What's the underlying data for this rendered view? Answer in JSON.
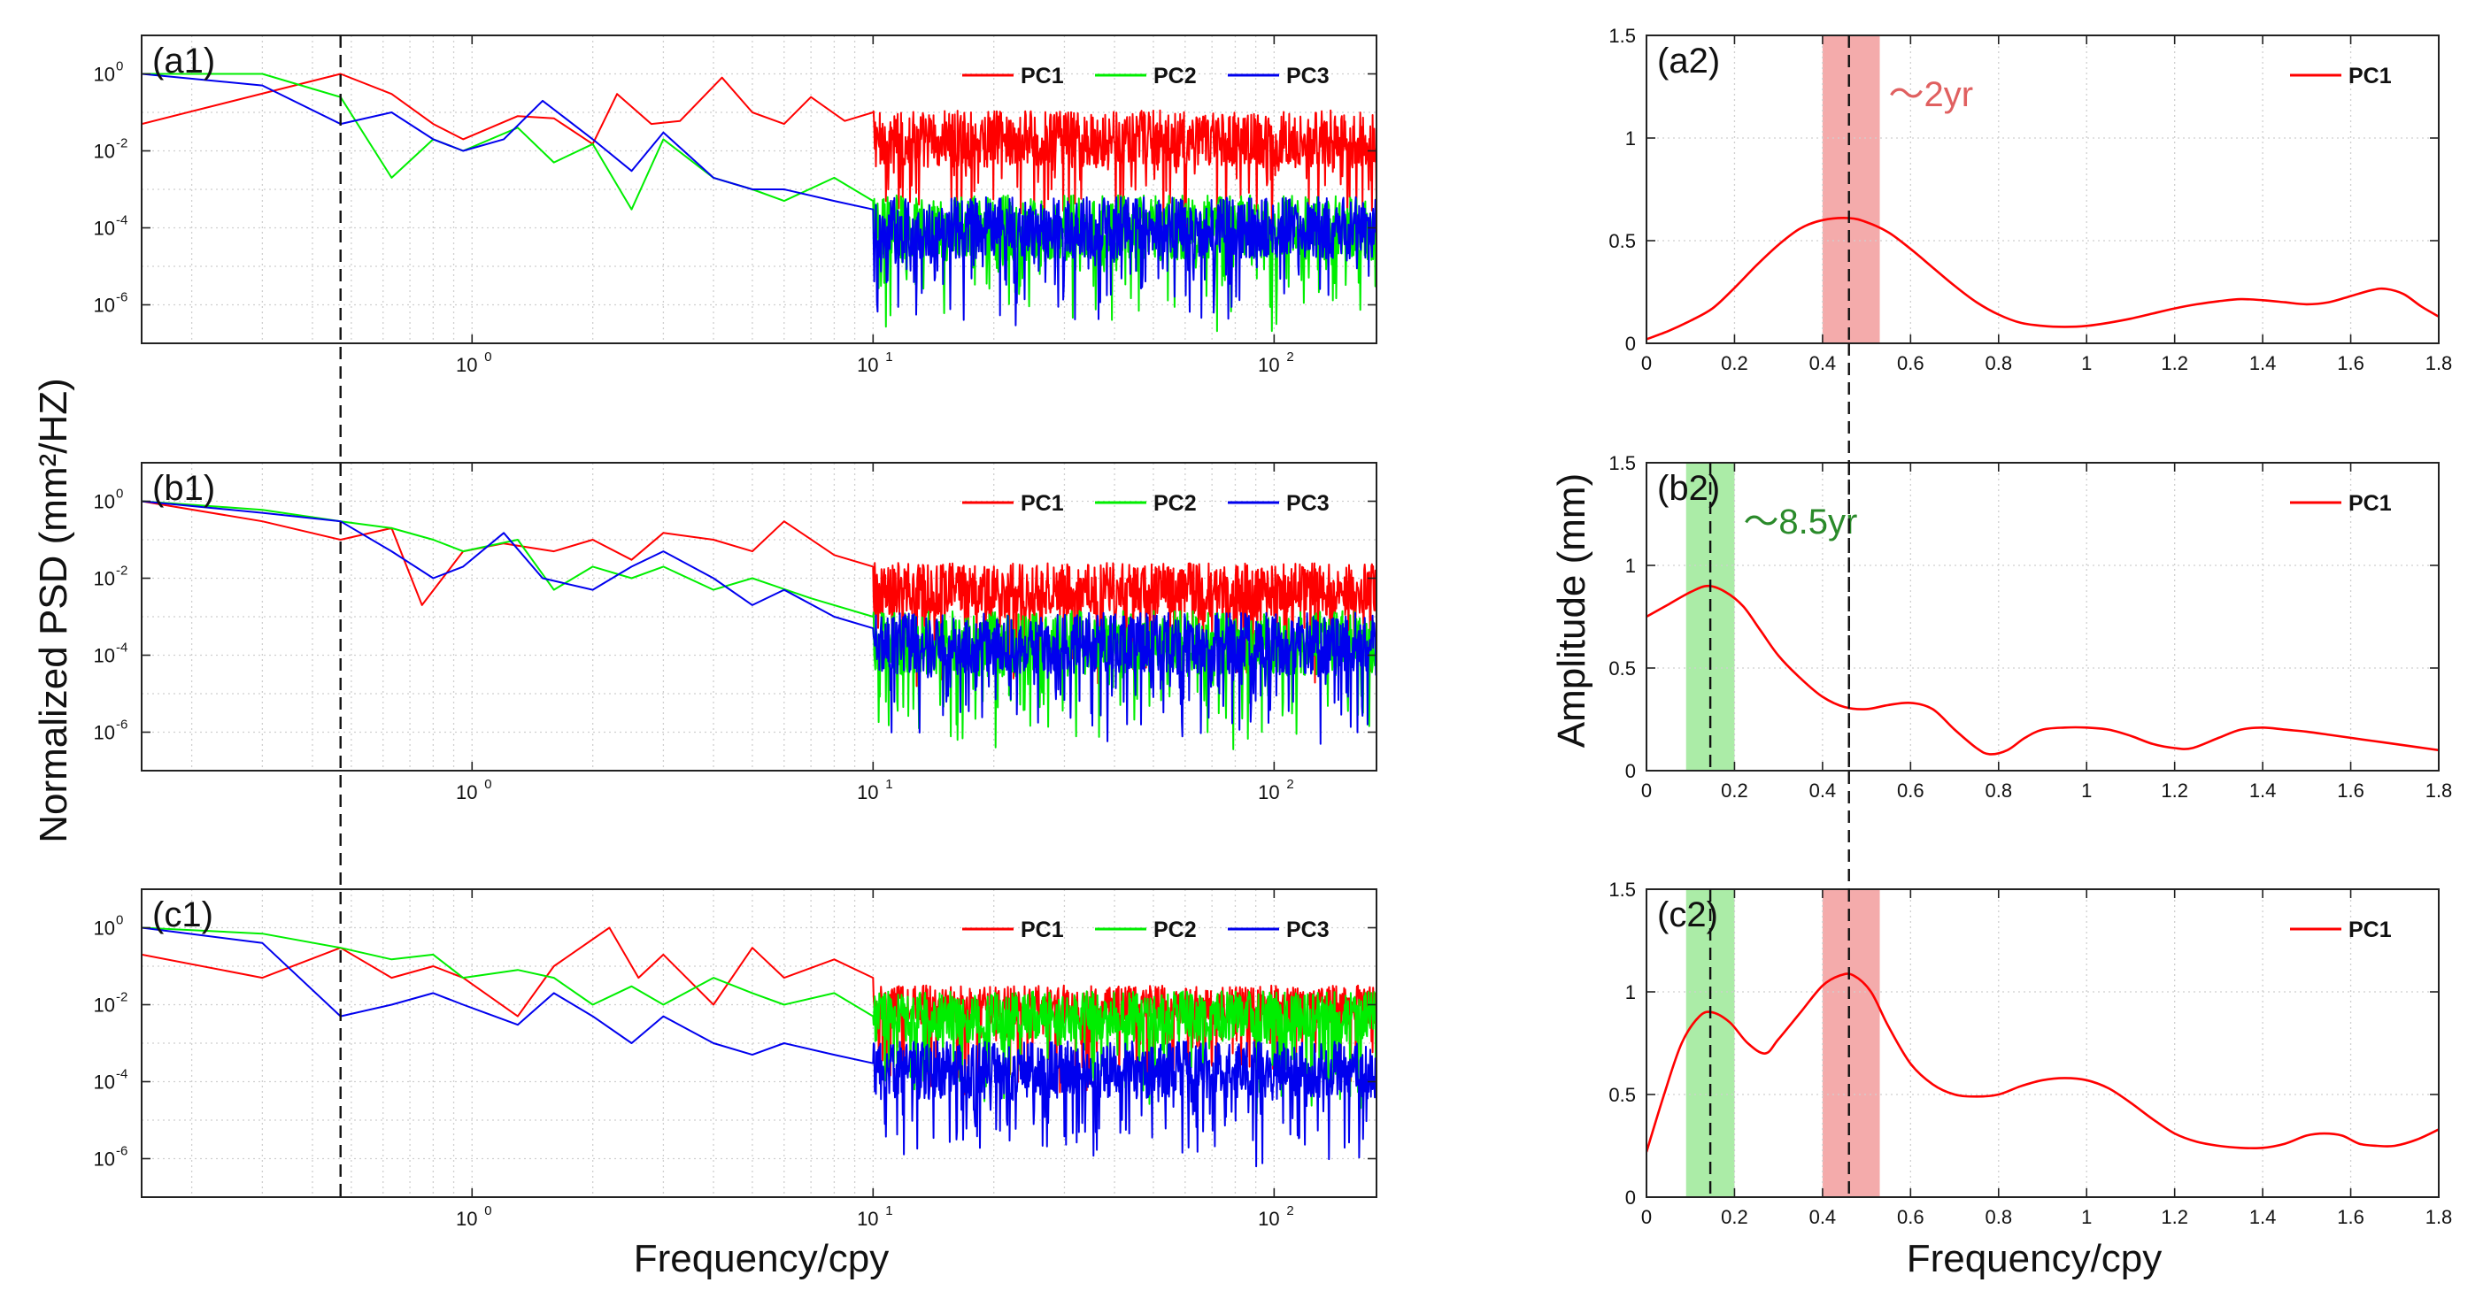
{
  "figure": {
    "left_ylabel": "Normalized PSD (mm²/HZ)",
    "right_ylabel": "Amplitude (mm)",
    "left_xlabel": "Frequency/cpy",
    "right_xlabel": "Frequency/cpy"
  },
  "colors": {
    "PC1": "#ff0000",
    "PC2": "#00ee00",
    "PC3": "#0000ee",
    "pink_band": "#f08f8f",
    "green_band": "#8fe68a",
    "green_text": "#2a8a2a",
    "pink_text": "#e06060"
  },
  "chart_data": [
    {
      "id": "a1",
      "type": "line",
      "scale": "loglog",
      "label": "(a1)",
      "xlim": [
        0.15,
        180
      ],
      "ylim": [
        1e-07,
        10
      ],
      "xticks": [
        1,
        10,
        100
      ],
      "xtick_labels": [
        "10",
        "10",
        "10"
      ],
      "xtick_exps": [
        "0",
        "1",
        "2"
      ],
      "yticks": [
        1e-06,
        0.0001,
        0.01,
        1
      ],
      "ytick_labels": [
        "10",
        "10",
        "10",
        "10"
      ],
      "ytick_exps": [
        "-6",
        "-4",
        "-2",
        "0"
      ],
      "grid": true,
      "vline_x": 0.47,
      "legend": [
        "PC1",
        "PC2",
        "PC3"
      ],
      "series": [
        {
          "name": "PC1",
          "x": [
            0.15,
            0.47,
            0.63,
            0.8,
            0.95,
            1.3,
            1.6,
            2.0,
            2.3,
            2.8,
            3.3,
            4.2,
            5.0,
            6.0,
            7.0,
            8.5,
            10
          ],
          "values": [
            0.05,
            1.0,
            0.3,
            0.05,
            0.02,
            0.08,
            0.07,
            0.015,
            0.3,
            0.05,
            0.06,
            0.8,
            0.1,
            0.05,
            0.25,
            0.06,
            0.1
          ],
          "noise_center": 0.02,
          "noise_decades": 1.5
        },
        {
          "name": "PC2",
          "x": [
            0.15,
            0.3,
            0.47,
            0.63,
            0.8,
            0.95,
            1.3,
            1.6,
            2.0,
            2.5,
            3.0,
            4.0,
            5.0,
            6.0,
            8.0,
            10
          ],
          "values": [
            1.0,
            1.0,
            0.25,
            0.002,
            0.02,
            0.01,
            0.04,
            0.005,
            0.015,
            0.0003,
            0.02,
            0.002,
            0.001,
            0.0005,
            0.002,
            0.0005
          ],
          "noise_center": 0.0001,
          "noise_decades": 1.7
        },
        {
          "name": "PC3",
          "x": [
            0.15,
            0.3,
            0.47,
            0.63,
            0.8,
            0.95,
            1.2,
            1.5,
            2.0,
            2.5,
            3.0,
            4.0,
            5.0,
            6.0,
            8.0,
            10
          ],
          "values": [
            1.0,
            0.5,
            0.05,
            0.1,
            0.02,
            0.01,
            0.02,
            0.2,
            0.02,
            0.003,
            0.03,
            0.002,
            0.001,
            0.001,
            0.0005,
            0.0003
          ],
          "noise_center": 0.0001,
          "noise_decades": 1.6
        }
      ]
    },
    {
      "id": "b1",
      "type": "line",
      "scale": "loglog",
      "label": "(b1)",
      "xlim": [
        0.15,
        180
      ],
      "ylim": [
        1e-07,
        10
      ],
      "xticks": [
        1,
        10,
        100
      ],
      "xtick_labels": [
        "10",
        "10",
        "10"
      ],
      "xtick_exps": [
        "0",
        "1",
        "2"
      ],
      "yticks": [
        1e-06,
        0.0001,
        0.01,
        1
      ],
      "ytick_labels": [
        "10",
        "10",
        "10",
        "10"
      ],
      "ytick_exps": [
        "-6",
        "-4",
        "-2",
        "0"
      ],
      "grid": true,
      "vline_x": 0.47,
      "legend": [
        "PC1",
        "PC2",
        "PC3"
      ],
      "series": [
        {
          "name": "PC1",
          "x": [
            0.15,
            0.3,
            0.47,
            0.63,
            0.75,
            0.95,
            1.2,
            1.6,
            2.0,
            2.5,
            3.0,
            4.0,
            5.0,
            6.0,
            8.0,
            10
          ],
          "values": [
            1.0,
            0.3,
            0.1,
            0.2,
            0.002,
            0.05,
            0.08,
            0.05,
            0.1,
            0.03,
            0.15,
            0.1,
            0.05,
            0.3,
            0.04,
            0.02
          ],
          "noise_center": 0.005,
          "noise_decades": 1.4
        },
        {
          "name": "PC2",
          "x": [
            0.15,
            0.3,
            0.47,
            0.63,
            0.8,
            0.95,
            1.3,
            1.6,
            2.0,
            2.5,
            3.0,
            4.0,
            5.0,
            7.0,
            10
          ],
          "values": [
            1.0,
            0.6,
            0.3,
            0.2,
            0.1,
            0.05,
            0.1,
            0.005,
            0.02,
            0.01,
            0.02,
            0.005,
            0.01,
            0.003,
            0.001
          ],
          "noise_center": 0.0002,
          "noise_decades": 1.7
        },
        {
          "name": "PC3",
          "x": [
            0.15,
            0.3,
            0.47,
            0.63,
            0.8,
            0.95,
            1.2,
            1.5,
            2.0,
            2.5,
            3.0,
            4.0,
            5.0,
            6.0,
            8.0,
            10
          ],
          "values": [
            1.0,
            0.5,
            0.3,
            0.05,
            0.01,
            0.02,
            0.15,
            0.01,
            0.005,
            0.02,
            0.05,
            0.01,
            0.002,
            0.005,
            0.001,
            0.0005
          ],
          "noise_center": 0.0002,
          "noise_decades": 1.6
        }
      ]
    },
    {
      "id": "c1",
      "type": "line",
      "scale": "loglog",
      "label": "(c1)",
      "xlim": [
        0.15,
        180
      ],
      "ylim": [
        1e-07,
        10
      ],
      "xticks": [
        1,
        10,
        100
      ],
      "xtick_labels": [
        "10",
        "10",
        "10"
      ],
      "xtick_exps": [
        "0",
        "1",
        "2"
      ],
      "yticks": [
        1e-06,
        0.0001,
        0.01,
        1
      ],
      "ytick_labels": [
        "10",
        "10",
        "10",
        "10"
      ],
      "ytick_exps": [
        "-6",
        "-4",
        "-2",
        "0"
      ],
      "grid": true,
      "vline_x": 0.47,
      "legend": [
        "PC1",
        "PC2",
        "PC3"
      ],
      "series": [
        {
          "name": "PC1",
          "x": [
            0.15,
            0.3,
            0.47,
            0.63,
            0.8,
            0.95,
            1.3,
            1.6,
            2.2,
            2.6,
            3.0,
            4.0,
            5.0,
            6.0,
            8.0,
            10
          ],
          "values": [
            0.2,
            0.05,
            0.3,
            0.05,
            0.1,
            0.05,
            0.005,
            0.1,
            1.0,
            0.05,
            0.2,
            0.01,
            0.3,
            0.05,
            0.15,
            0.05
          ],
          "noise_center": 0.01,
          "noise_decades": 1.0
        },
        {
          "name": "PC2",
          "x": [
            0.15,
            0.3,
            0.47,
            0.63,
            0.8,
            0.95,
            1.3,
            1.6,
            2.0,
            2.5,
            3.0,
            4.0,
            5.0,
            6.0,
            8.0,
            10
          ],
          "values": [
            1.0,
            0.7,
            0.3,
            0.15,
            0.2,
            0.05,
            0.08,
            0.05,
            0.01,
            0.03,
            0.01,
            0.05,
            0.02,
            0.01,
            0.02,
            0.005
          ],
          "noise_center": 0.005,
          "noise_decades": 1.3
        },
        {
          "name": "PC3",
          "x": [
            0.15,
            0.3,
            0.47,
            0.63,
            0.8,
            0.95,
            1.3,
            1.6,
            2.0,
            2.5,
            3.0,
            4.0,
            5.0,
            6.0,
            8.0,
            10
          ],
          "values": [
            1.0,
            0.4,
            0.005,
            0.01,
            0.02,
            0.01,
            0.003,
            0.02,
            0.005,
            0.001,
            0.005,
            0.001,
            0.0005,
            0.001,
            0.0005,
            0.0003
          ],
          "noise_center": 0.0002,
          "noise_decades": 1.5
        }
      ]
    },
    {
      "id": "a2",
      "type": "line",
      "scale": "linear",
      "label": "(a2)",
      "xlim": [
        0,
        1.8
      ],
      "ylim": [
        0,
        1.5
      ],
      "xticks": [
        0,
        0.2,
        0.4,
        0.6,
        0.8,
        1,
        1.2,
        1.4,
        1.6,
        1.8
      ],
      "xtick_labels": [
        "0",
        "0.2",
        "0.4",
        "0.6",
        "0.8",
        "1",
        "1.2",
        "1.4",
        "1.6",
        "1.8"
      ],
      "yticks": [
        0,
        0.5,
        1,
        1.5
      ],
      "ytick_labels": [
        "0",
        "0.5",
        "1",
        "1.5"
      ],
      "grid": true,
      "legend": [
        "PC1"
      ],
      "bands": [
        {
          "x0": 0.4,
          "x1": 0.53,
          "color_key": "pink_band",
          "label": "～2yr",
          "label_color_key": "pink_text"
        }
      ],
      "vlines": [
        0.46
      ],
      "series": [
        {
          "name": "PC1",
          "x": [
            0,
            0.05,
            0.1,
            0.15,
            0.2,
            0.25,
            0.3,
            0.35,
            0.4,
            0.46,
            0.5,
            0.55,
            0.6,
            0.65,
            0.7,
            0.75,
            0.8,
            0.85,
            0.9,
            0.95,
            1.0,
            1.05,
            1.1,
            1.15,
            1.2,
            1.25,
            1.3,
            1.35,
            1.4,
            1.45,
            1.5,
            1.55,
            1.6,
            1.65,
            1.68,
            1.72,
            1.76,
            1.8
          ],
          "values": [
            0.02,
            0.06,
            0.11,
            0.17,
            0.27,
            0.38,
            0.48,
            0.56,
            0.6,
            0.61,
            0.59,
            0.54,
            0.46,
            0.37,
            0.28,
            0.2,
            0.14,
            0.1,
            0.085,
            0.08,
            0.085,
            0.1,
            0.12,
            0.145,
            0.17,
            0.19,
            0.205,
            0.215,
            0.21,
            0.2,
            0.19,
            0.2,
            0.23,
            0.26,
            0.265,
            0.24,
            0.18,
            0.13
          ]
        }
      ]
    },
    {
      "id": "b2",
      "type": "line",
      "scale": "linear",
      "label": "(b2)",
      "xlim": [
        0,
        1.8
      ],
      "ylim": [
        0,
        1.5
      ],
      "xticks": [
        0,
        0.2,
        0.4,
        0.6,
        0.8,
        1,
        1.2,
        1.4,
        1.6,
        1.8
      ],
      "xtick_labels": [
        "0",
        "0.2",
        "0.4",
        "0.6",
        "0.8",
        "1",
        "1.2",
        "1.4",
        "1.6",
        "1.8"
      ],
      "yticks": [
        0,
        0.5,
        1,
        1.5
      ],
      "ytick_labels": [
        "0",
        "0.5",
        "1",
        "1.5"
      ],
      "grid": true,
      "legend": [
        "PC1"
      ],
      "bands": [
        {
          "x0": 0.09,
          "x1": 0.2,
          "color_key": "green_band",
          "label": "～8.5yr",
          "label_color_key": "green_text"
        }
      ],
      "vlines": [
        0.145,
        0.46
      ],
      "series": [
        {
          "name": "PC1",
          "x": [
            0,
            0.05,
            0.1,
            0.14,
            0.18,
            0.22,
            0.26,
            0.3,
            0.35,
            0.4,
            0.45,
            0.5,
            0.55,
            0.6,
            0.65,
            0.7,
            0.75,
            0.78,
            0.82,
            0.86,
            0.9,
            0.95,
            1.0,
            1.05,
            1.1,
            1.15,
            1.2,
            1.24,
            1.3,
            1.35,
            1.4,
            1.45,
            1.5,
            1.55,
            1.6,
            1.65,
            1.7,
            1.75,
            1.8
          ],
          "values": [
            0.75,
            0.81,
            0.87,
            0.9,
            0.87,
            0.8,
            0.68,
            0.56,
            0.45,
            0.36,
            0.31,
            0.3,
            0.32,
            0.33,
            0.3,
            0.2,
            0.11,
            0.08,
            0.1,
            0.16,
            0.2,
            0.21,
            0.21,
            0.2,
            0.17,
            0.13,
            0.11,
            0.11,
            0.16,
            0.2,
            0.21,
            0.2,
            0.19,
            0.175,
            0.16,
            0.145,
            0.13,
            0.115,
            0.1
          ]
        }
      ]
    },
    {
      "id": "c2",
      "type": "line",
      "scale": "linear",
      "label": "(c2)",
      "xlim": [
        0,
        1.8
      ],
      "ylim": [
        0,
        1.5
      ],
      "xticks": [
        0,
        0.2,
        0.4,
        0.6,
        0.8,
        1,
        1.2,
        1.4,
        1.6,
        1.8
      ],
      "xtick_labels": [
        "0",
        "0.2",
        "0.4",
        "0.6",
        "0.8",
        "1",
        "1.2",
        "1.4",
        "1.6",
        "1.8"
      ],
      "yticks": [
        0,
        0.5,
        1,
        1.5
      ],
      "ytick_labels": [
        "0",
        "0.5",
        "1",
        "1.5"
      ],
      "grid": true,
      "legend": [
        "PC1"
      ],
      "bands": [
        {
          "x0": 0.09,
          "x1": 0.2,
          "color_key": "green_band",
          "label": "",
          "label_color_key": "green_text"
        },
        {
          "x0": 0.4,
          "x1": 0.53,
          "color_key": "pink_band",
          "label": "",
          "label_color_key": "pink_text"
        }
      ],
      "vlines": [
        0.145,
        0.46
      ],
      "series": [
        {
          "name": "PC1",
          "x": [
            0,
            0.04,
            0.08,
            0.12,
            0.15,
            0.19,
            0.23,
            0.27,
            0.3,
            0.35,
            0.4,
            0.44,
            0.47,
            0.51,
            0.55,
            0.6,
            0.65,
            0.7,
            0.75,
            0.8,
            0.85,
            0.9,
            0.95,
            1.0,
            1.05,
            1.1,
            1.15,
            1.2,
            1.25,
            1.3,
            1.35,
            1.4,
            1.45,
            1.5,
            1.54,
            1.58,
            1.62,
            1.66,
            1.7,
            1.75,
            1.8
          ],
          "values": [
            0.22,
            0.5,
            0.75,
            0.88,
            0.9,
            0.85,
            0.75,
            0.7,
            0.77,
            0.9,
            1.03,
            1.08,
            1.08,
            1.0,
            0.83,
            0.65,
            0.55,
            0.5,
            0.49,
            0.5,
            0.54,
            0.57,
            0.58,
            0.57,
            0.53,
            0.46,
            0.38,
            0.31,
            0.27,
            0.25,
            0.24,
            0.24,
            0.26,
            0.3,
            0.31,
            0.3,
            0.26,
            0.25,
            0.25,
            0.28,
            0.33
          ]
        }
      ]
    }
  ]
}
